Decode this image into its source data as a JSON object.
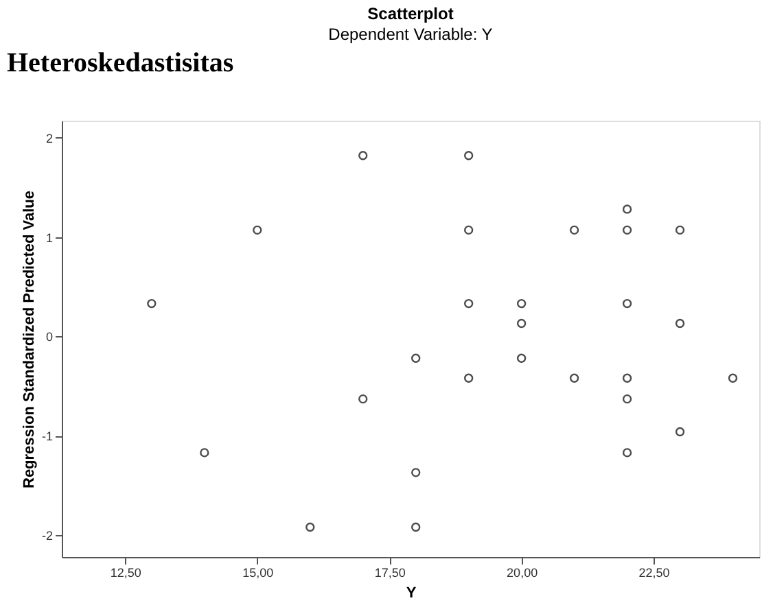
{
  "chart_data": {
    "type": "scatter",
    "title": "Scatterplot",
    "subtitle": "Dependent Variable: Y",
    "xlabel": "Y",
    "ylabel": "Regression Standardized Predicted Value",
    "annotations": [
      "Heteroskedastisitas"
    ],
    "x": [
      13,
      14,
      15,
      16,
      17,
      17,
      18,
      18,
      18,
      19,
      19,
      19,
      19,
      20,
      20,
      20,
      21,
      21,
      22,
      22,
      22,
      22,
      22,
      22,
      23,
      23,
      23,
      24
    ],
    "series": [
      {
        "color": "#4d4d4d",
        "values": [
          0.33,
          -1.17,
          1.07,
          -1.92,
          1.82,
          -0.63,
          -0.22,
          -1.37,
          -1.92,
          1.82,
          1.07,
          0.33,
          -0.42,
          0.33,
          0.13,
          -0.22,
          1.07,
          -0.42,
          1.28,
          1.07,
          0.33,
          -0.42,
          -0.63,
          -1.17,
          1.07,
          0.13,
          -0.96,
          -0.42
        ]
      }
    ],
    "xlim": [
      11.3,
      24.5
    ],
    "ylim": [
      -2.22,
      2.17
    ],
    "xticks": [
      {
        "value": 12.5,
        "label": "12,50"
      },
      {
        "value": 15,
        "label": "15,00"
      },
      {
        "value": 17.5,
        "label": "17,50"
      },
      {
        "value": 20,
        "label": "20,00"
      },
      {
        "value": 22.5,
        "label": "22,50"
      }
    ],
    "yticks": [
      -2,
      -1,
      0,
      1,
      2
    ],
    "grid": false,
    "marker": "circle"
  }
}
